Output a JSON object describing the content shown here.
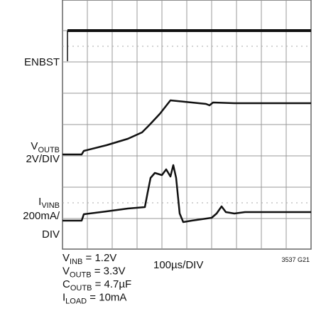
{
  "traces": [
    {
      "label": "ENBST"
    },
    {
      "label": {
        "main": "V",
        "sub": "OUTB"
      },
      "scale": "2V/DIV"
    },
    {
      "label": {
        "main": "I",
        "sub": "VINB"
      },
      "scale": [
        "200mA/",
        "DIV"
      ]
    }
  ],
  "conditions": [
    {
      "main": "V",
      "sub": "INB",
      "rest": " = 1.2V"
    },
    {
      "main": "V",
      "sub": "OUTB",
      "rest": " = 3.3V"
    },
    {
      "main": "C",
      "sub": "OUTB",
      "rest": " = 4.7µF"
    },
    {
      "main": "I",
      "sub": "LOAD",
      "rest": " = 10mA"
    }
  ],
  "timebase": "100µs/DIV",
  "figure_id": "3537 G21"
}
